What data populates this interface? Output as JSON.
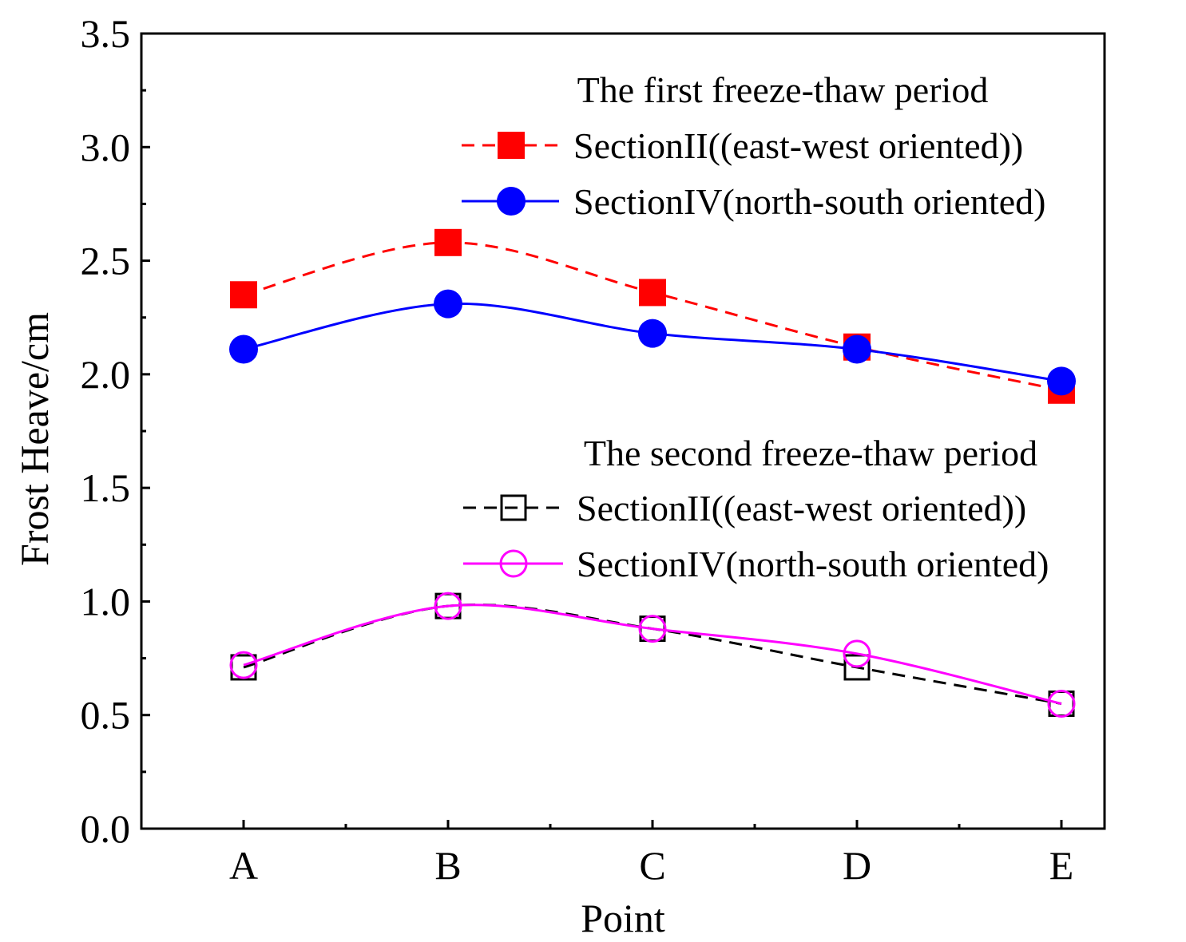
{
  "chart_data": {
    "type": "line",
    "xlabel": "Point",
    "ylabel": "Frost Heave/cm",
    "categories": [
      "A",
      "B",
      "C",
      "D",
      "E"
    ],
    "ylim": [
      0,
      3.5
    ],
    "yticks": [
      "0.0",
      "0.5",
      "1.0",
      "1.5",
      "2.0",
      "2.5",
      "3.0",
      "3.5"
    ],
    "grid": false,
    "legend_groups": [
      {
        "title": "The first freeze-thaw period",
        "series_indices": [
          0,
          1
        ]
      },
      {
        "title": "The second freeze-thaw period",
        "series_indices": [
          2,
          3
        ]
      }
    ],
    "series": [
      {
        "name": "SectionII((east-west oriented))",
        "values": [
          2.35,
          2.58,
          2.36,
          2.12,
          1.93
        ],
        "color": "#ff0000",
        "marker": "square-filled",
        "line": "dashed"
      },
      {
        "name": "SectionIV(north-south oriented)",
        "values": [
          2.11,
          2.31,
          2.18,
          2.11,
          1.97
        ],
        "color": "#0000ff",
        "marker": "circle-filled",
        "line": "solid"
      },
      {
        "name": "SectionII((east-west oriented))",
        "values": [
          0.71,
          0.98,
          0.88,
          0.71,
          0.55
        ],
        "color": "#000000",
        "marker": "square-open",
        "line": "dashed"
      },
      {
        "name": "SectionIV(north-south oriented)",
        "values": [
          0.72,
          0.98,
          0.88,
          0.77,
          0.55
        ],
        "color": "#ff00ff",
        "marker": "circle-open",
        "line": "solid"
      }
    ]
  }
}
